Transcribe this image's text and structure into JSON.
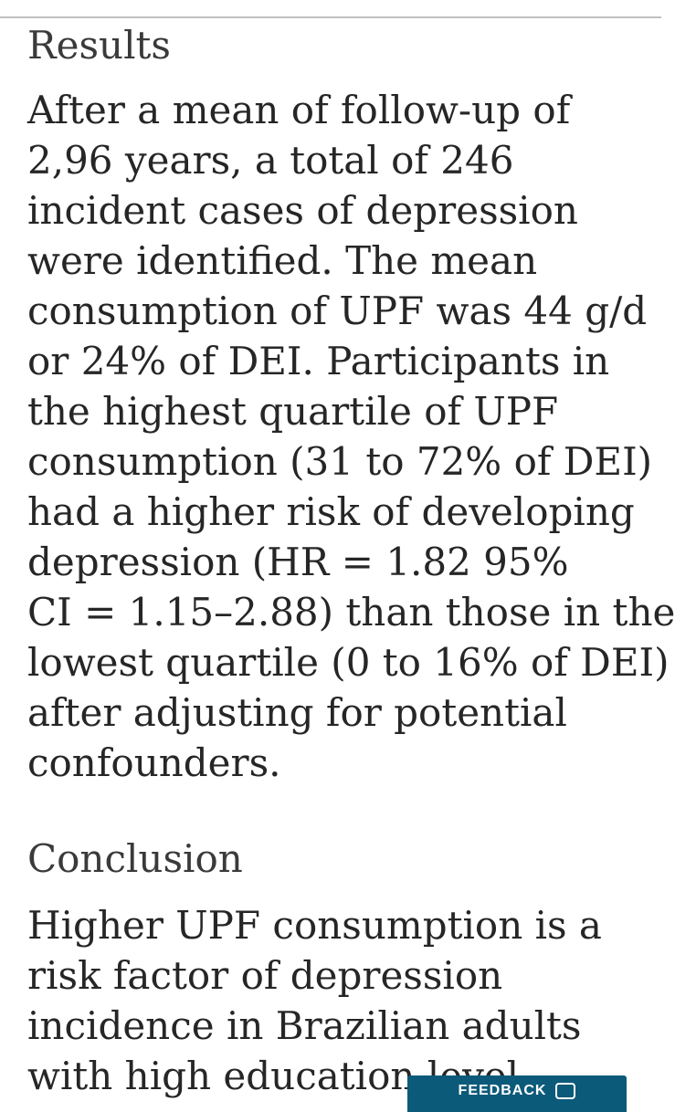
{
  "results": {
    "title": "Results",
    "lines": [
      "After a mean of follow-up of",
      "2,96 years, a total of 246",
      "incident cases of depression",
      "were identified. The mean",
      "consumption of UPF was 44 g/d",
      "or 24% of DEI. Participants in",
      "the highest quartile of UPF",
      "consumption (31 to 72% of DEI)",
      "had a higher risk of developing",
      "depression (HR = 1.82 95%",
      "CI = 1.15–2.88) than those in the",
      "lowest quartile (0 to 16% of DEI)",
      "after adjusting for potential",
      "confounders."
    ]
  },
  "conclusion": {
    "title": "Conclusion",
    "lines": [
      "Higher UPF consumption is a",
      "risk factor of depression",
      "incidence in Brazilian adults",
      "with high education level."
    ]
  },
  "feedback": {
    "label": "FEEDBACK",
    "icon": "chat-bubble-icon",
    "color": "#0c5a7a"
  }
}
